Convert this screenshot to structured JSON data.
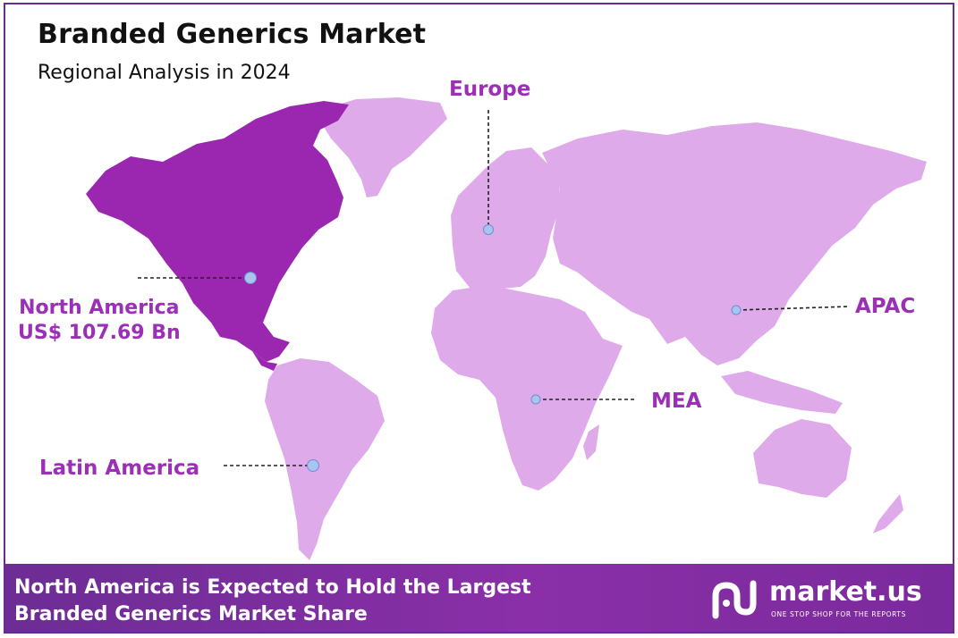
{
  "header": {
    "title": "Branded Generics Market",
    "subtitle": "Regional Analysis in 2024"
  },
  "regions": {
    "europe": "Europe",
    "apac": "APAC",
    "mea": "MEA",
    "latin_america": "Latin America",
    "north_america": "North America",
    "north_america_value": "US$  107.69 Bn"
  },
  "highlight_region": "North America",
  "colors": {
    "highlight": "#9b27b0",
    "land": "#dfaaea",
    "label": "#9b2fb5",
    "marker": "#a9c4ee",
    "footer_start": "#6c2d94",
    "footer_end": "#8a2fa8"
  },
  "footer": {
    "line1": "North America is Expected to Hold the Largest",
    "line2": "Branded Generics Market Share"
  },
  "brand": {
    "name": "market.us",
    "tagline": "ONE STOP SHOP FOR THE REPORTS"
  }
}
